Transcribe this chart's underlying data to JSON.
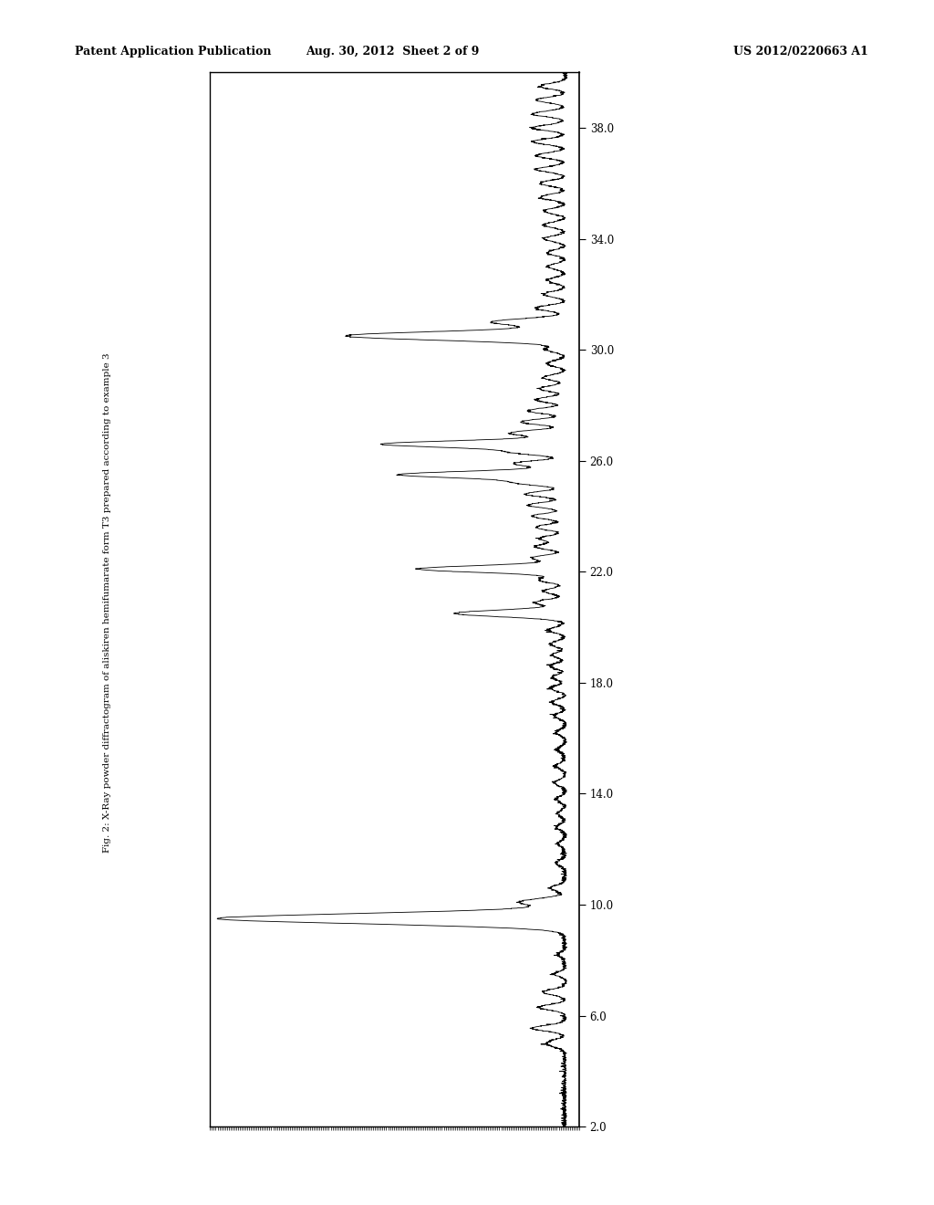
{
  "title_top_left": "Patent Application Publication",
  "title_top_center": "Aug. 30, 2012  Sheet 2 of 9",
  "title_top_right": "US 2012/0220663 A1",
  "fig_label": "Fig. 2: X-Ray powder diffractogram of aliskiren hemifumarate form T3 prepared according to example 3",
  "x_min": 2.0,
  "x_max": 40.0,
  "x_ticks": [
    2.0,
    6.0,
    10.0,
    14.0,
    18.0,
    22.0,
    26.0,
    30.0,
    34.0,
    38.0
  ],
  "background_color": "#ffffff",
  "line_color": "#000000"
}
